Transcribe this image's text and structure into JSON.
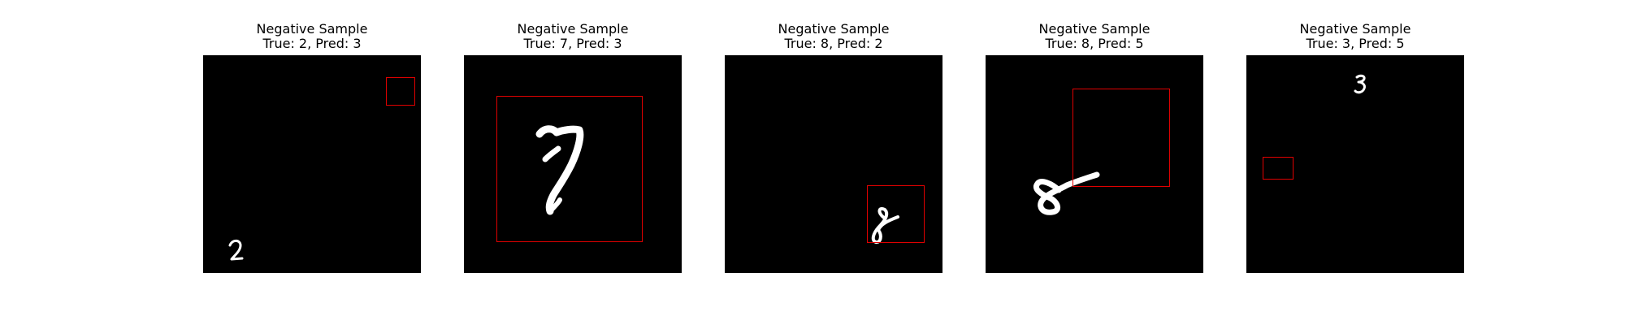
{
  "colors": {
    "background": "#ffffff",
    "image_background": "#000000",
    "digit_stroke": "#ffffff",
    "box_stroke": "#e00000"
  },
  "panels": [
    {
      "heading": "Negative Sample",
      "subtitle": "True: 2, Pred: 3"
    },
    {
      "heading": "Negative Sample",
      "subtitle": "True: 7, Pred: 3"
    },
    {
      "heading": "Negative Sample",
      "subtitle": "True: 8, Pred: 2"
    },
    {
      "heading": "Negative Sample",
      "subtitle": "True: 8, Pred: 5"
    },
    {
      "heading": "Negative Sample",
      "subtitle": "True: 3, Pred: 5"
    }
  ]
}
